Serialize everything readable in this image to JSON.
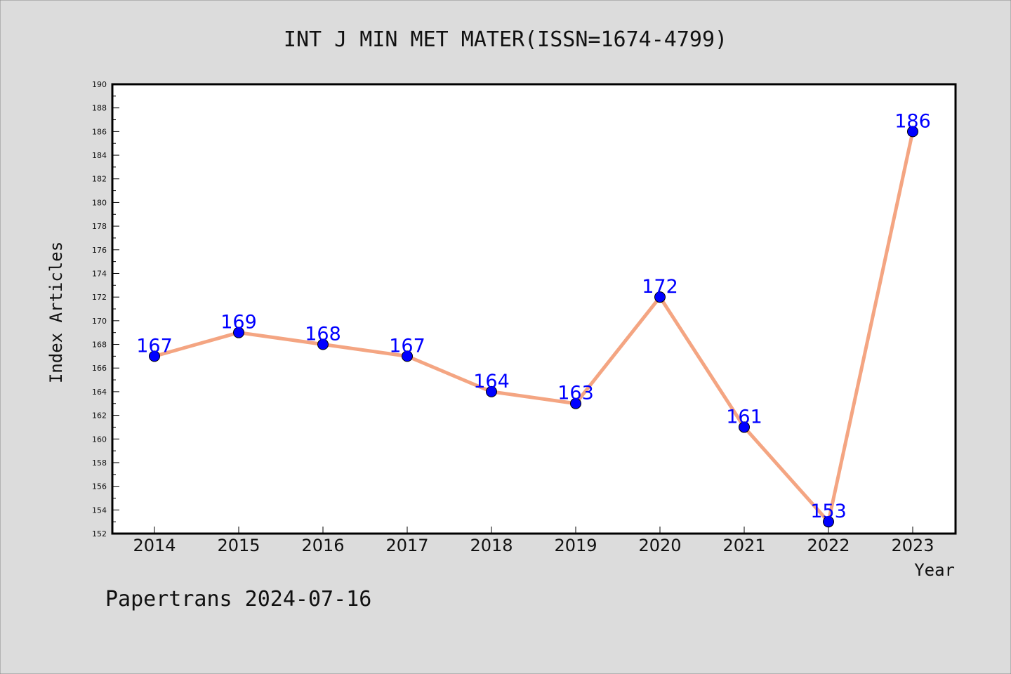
{
  "colors": {
    "background": "#dcdcdc",
    "plot_background": "#ffffff",
    "line": "#f4a582",
    "marker": "#0000ff",
    "data_label": "#0000ff"
  },
  "footer": "Papertrans 2024-07-16",
  "chart_data": {
    "type": "line",
    "title": "INT J MIN MET MATER(ISSN=1674-4799)",
    "xlabel": "Year",
    "ylabel": "Index Articles",
    "categories": [
      "2014",
      "2015",
      "2016",
      "2017",
      "2018",
      "2019",
      "2020",
      "2021",
      "2022",
      "2023"
    ],
    "series": [
      {
        "values": [
          167,
          169,
          168,
          167,
          164,
          163,
          172,
          161,
          153,
          186
        ]
      }
    ],
    "ylim": [
      152,
      190
    ],
    "y_ticks": [
      152,
      154,
      156,
      158,
      160,
      162,
      164,
      166,
      168,
      170,
      172,
      174,
      176,
      178,
      180,
      182,
      184,
      186,
      188,
      190
    ],
    "y_minor_step": 1,
    "grid": false,
    "legend": "none",
    "data_labels": true
  }
}
